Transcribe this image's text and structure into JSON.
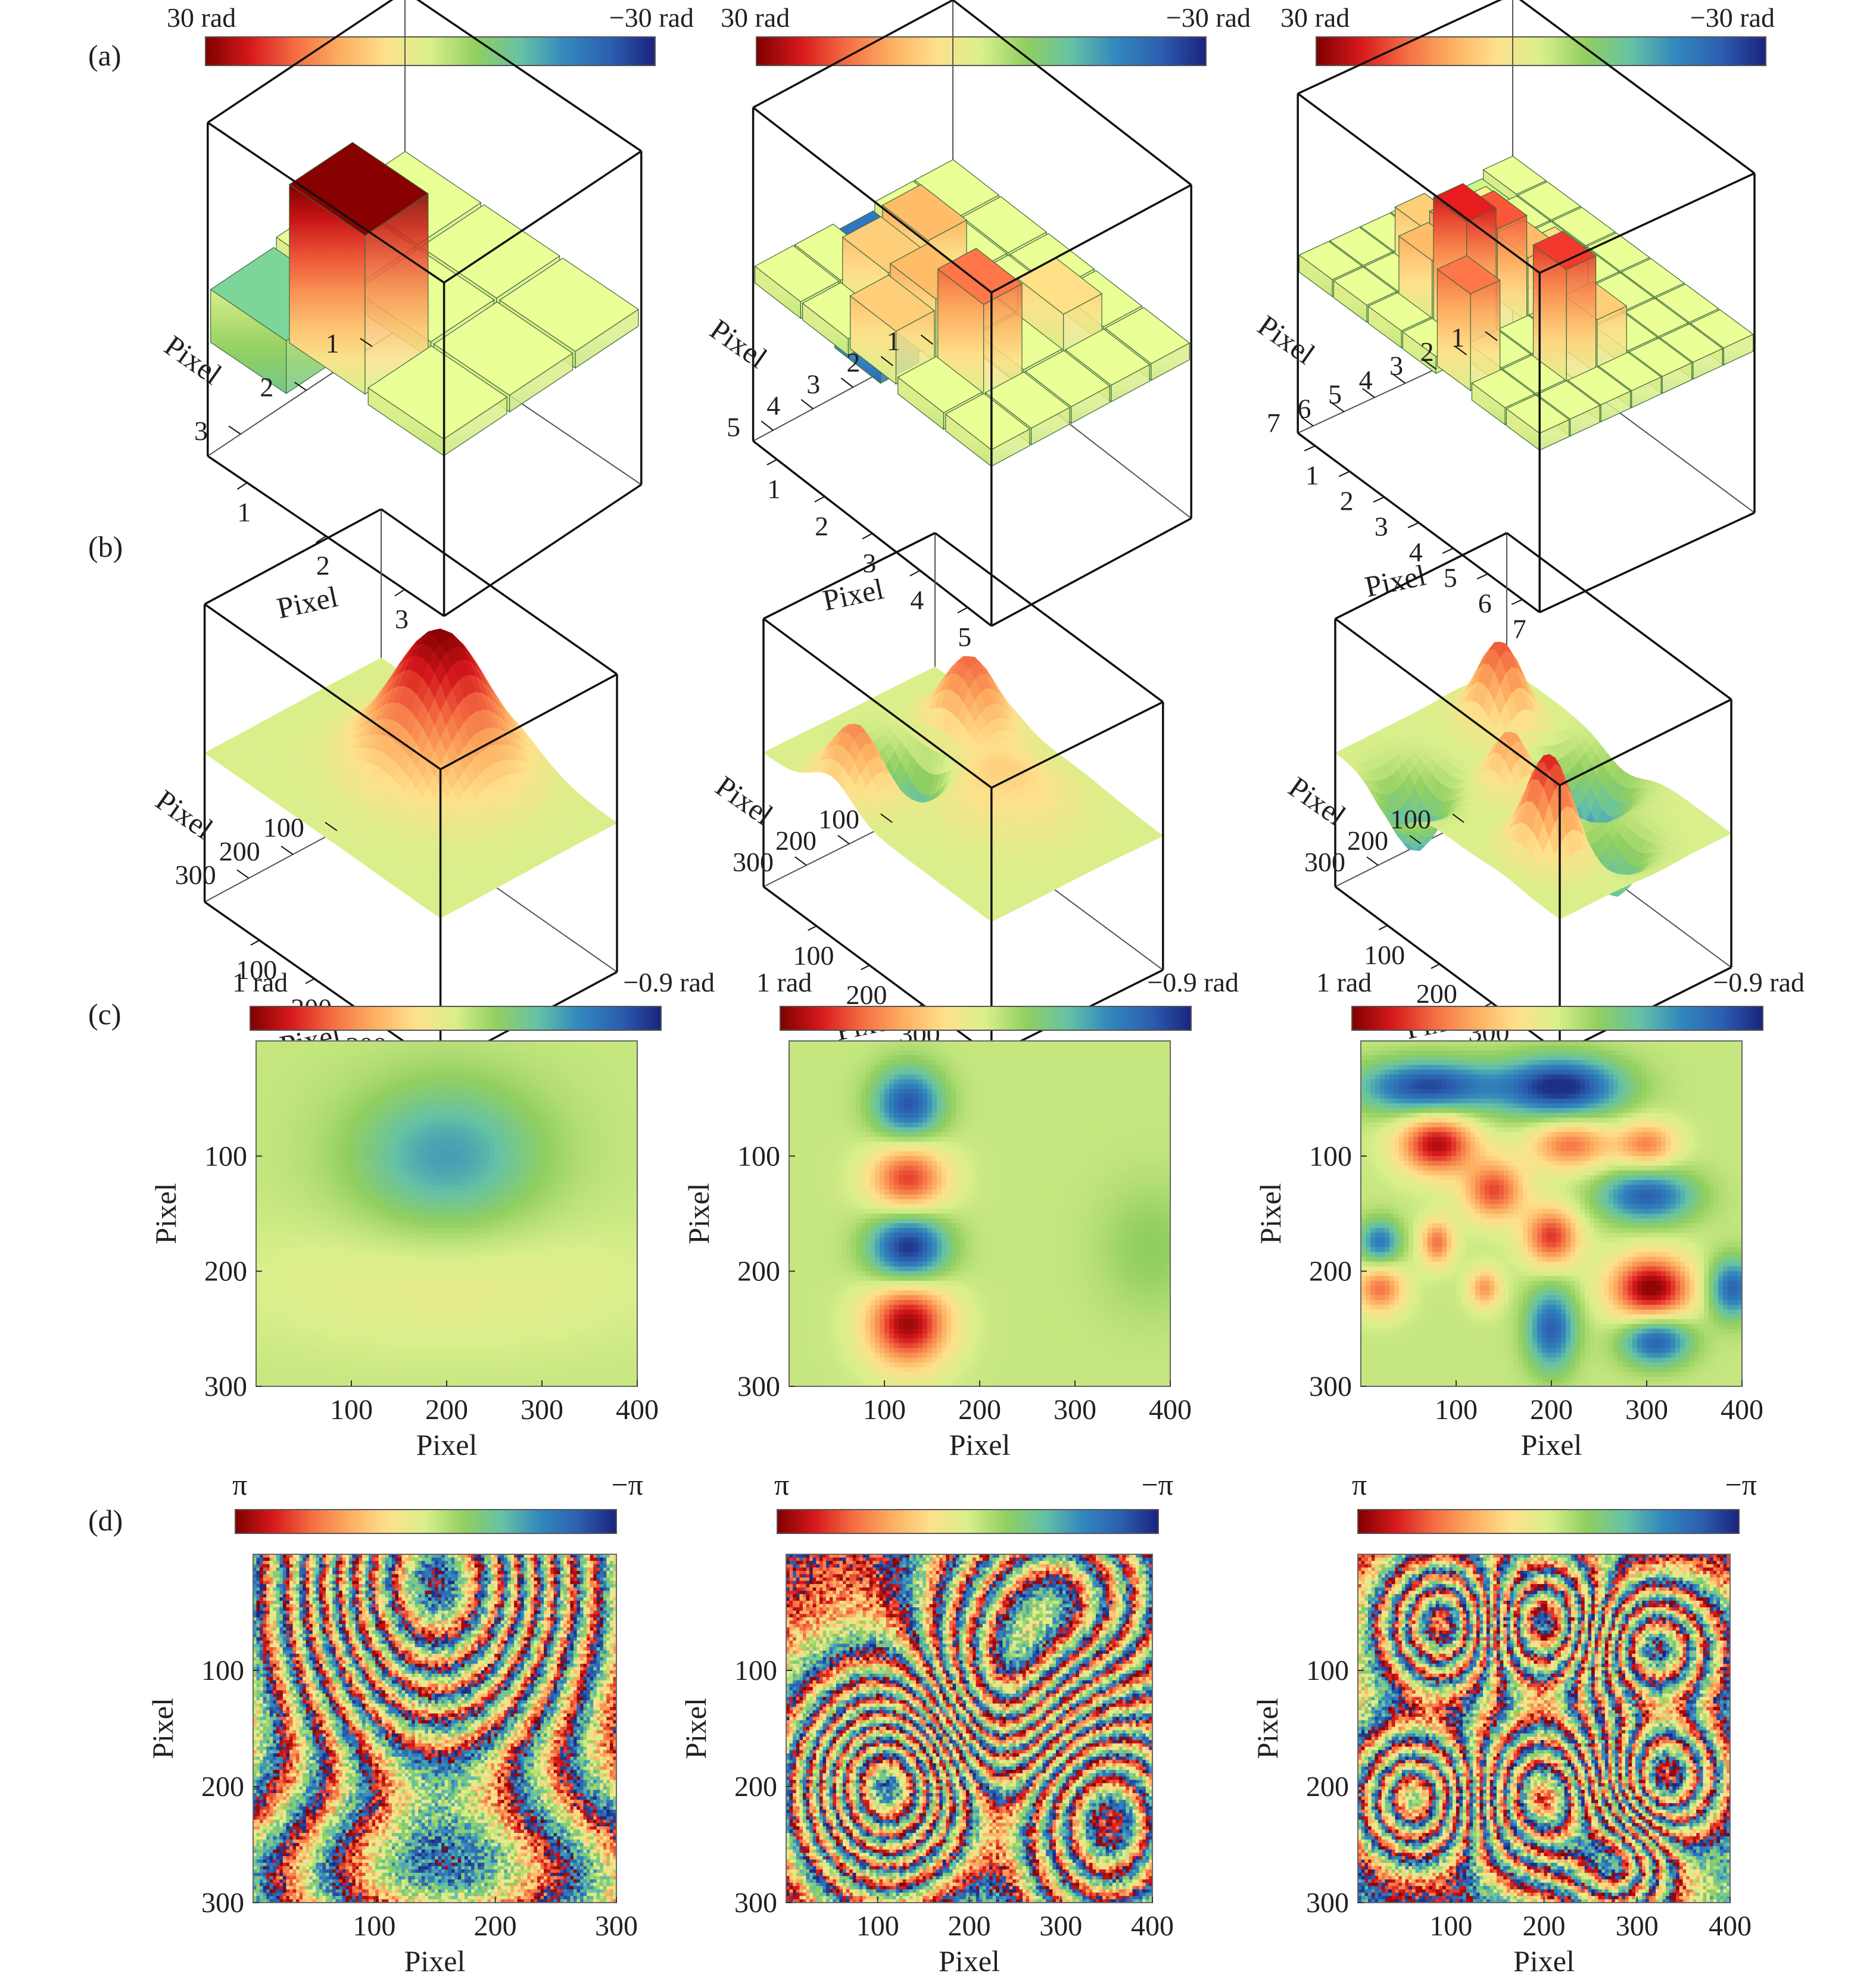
{
  "colormap": [
    "#7f0000",
    "#d7191c",
    "#f46d43",
    "#fdae61",
    "#fee08b",
    "#d9ef8b",
    "#91cf60",
    "#66c2a5",
    "#3288bd",
    "#2c5fb0",
    "#1a237e"
  ],
  "row_labels": [
    "(a)",
    "(b)",
    "(c)",
    "(d)"
  ],
  "row_a_colorbar": {
    "left": "30 rad",
    "right": "−30 rad"
  },
  "row_c_colorbar": {
    "left": "1 rad",
    "right": "−0.9 rad"
  },
  "row_d_colorbar": {
    "left": "π",
    "right": "−π"
  },
  "axis_label": "Pixel",
  "chart_data": [
    {
      "row": "a",
      "panel": 1,
      "type": "bar3d",
      "grid": [
        3,
        3
      ],
      "zlim": [
        -30,
        30
      ],
      "x_ticks": [
        "1",
        "2",
        "3"
      ],
      "y_ticks": [
        "1",
        "2",
        "3"
      ],
      "xlabel": "Pixel",
      "ylabel": "Pixel",
      "values": [
        [
          0,
          0,
          0
        ],
        [
          0,
          0,
          0
        ],
        [
          -10,
          30,
          0
        ]
      ]
    },
    {
      "row": "a",
      "panel": 2,
      "type": "bar3d",
      "grid": [
        5,
        5
      ],
      "zlim": [
        -30,
        30
      ],
      "x_ticks": [
        "1",
        "2",
        "3",
        "4",
        "5"
      ],
      "y_ticks": [
        "1",
        "2",
        "3",
        "4",
        "5"
      ],
      "xlabel": "Pixel",
      "ylabel": "Pixel",
      "values": [
        [
          0,
          0,
          0,
          0,
          0
        ],
        [
          0,
          0,
          0,
          8,
          0
        ],
        [
          -22,
          12,
          0,
          0,
          0
        ],
        [
          0,
          10,
          12,
          18,
          0
        ],
        [
          0,
          0,
          10,
          0,
          0
        ]
      ]
    },
    {
      "row": "a",
      "panel": 3,
      "type": "bar3d",
      "grid": [
        7,
        7
      ],
      "zlim": [
        -30,
        30
      ],
      "x_ticks": [
        "1",
        "2",
        "3",
        "4",
        "5",
        "6",
        "7"
      ],
      "y_ticks": [
        "1",
        "2",
        "3",
        "4",
        "5",
        "6",
        "7"
      ],
      "xlabel": "Pixel",
      "ylabel": "Pixel",
      "values": [
        [
          0,
          0,
          0,
          0,
          0,
          0,
          0
        ],
        [
          -2,
          0,
          0,
          0,
          0,
          0,
          0
        ],
        [
          -22,
          6,
          0,
          8,
          0,
          0,
          0
        ],
        [
          0,
          8,
          0,
          12,
          0,
          10,
          0
        ],
        [
          0,
          10,
          14,
          20,
          0,
          22,
          0
        ],
        [
          0,
          0,
          12,
          24,
          0,
          0,
          0
        ],
        [
          0,
          0,
          0,
          0,
          18,
          0,
          0
        ]
      ]
    },
    {
      "row": "b",
      "panel": 1,
      "type": "surface3d",
      "x_ticks": [
        "100",
        "200",
        "300",
        "400"
      ],
      "y_ticks": [
        "100",
        "200",
        "300"
      ],
      "xlabel": "Pixel",
      "ylabel": "Pixel",
      "peaks": [
        {
          "x": 200,
          "y": 100,
          "amp": 30,
          "sigma": 60
        }
      ]
    },
    {
      "row": "b",
      "panel": 2,
      "type": "surface3d",
      "x_ticks": [
        "100",
        "200",
        "300",
        "400"
      ],
      "y_ticks": [
        "100",
        "200",
        "300"
      ],
      "xlabel": "Pixel",
      "ylabel": "Pixel",
      "peaks": [
        {
          "x": 120,
          "y": 60,
          "amp": 18,
          "sigma": 35
        },
        {
          "x": 120,
          "y": 180,
          "amp": -22,
          "sigma": 35
        },
        {
          "x": 120,
          "y": 250,
          "amp": 18,
          "sigma": 35
        },
        {
          "x": 240,
          "y": 120,
          "amp": 8,
          "sigma": 60
        }
      ]
    },
    {
      "row": "b",
      "panel": 3,
      "type": "surface3d",
      "x_ticks": [
        "100",
        "200",
        "300",
        "400"
      ],
      "y_ticks": [
        "100",
        "200",
        "300"
      ],
      "xlabel": "Pixel",
      "ylabel": "Pixel",
      "peaks": [
        {
          "x": 80,
          "y": 90,
          "amp": 20,
          "sigma": 30
        },
        {
          "x": 210,
          "y": 60,
          "amp": -18,
          "sigma": 35
        },
        {
          "x": 300,
          "y": 220,
          "amp": 24,
          "sigma": 30
        },
        {
          "x": 180,
          "y": 170,
          "amp": 14,
          "sigma": 25
        },
        {
          "x": 100,
          "y": 260,
          "amp": -16,
          "sigma": 30
        },
        {
          "x": 320,
          "y": 130,
          "amp": -14,
          "sigma": 30
        }
      ]
    },
    {
      "row": "c",
      "panel": 1,
      "type": "heatmap",
      "xlim": [
        0,
        400
      ],
      "ylim": [
        0,
        300
      ],
      "x_ticks": [
        "100",
        "200",
        "300",
        "400"
      ],
      "y_ticks": [
        "100",
        "200",
        "300"
      ],
      "xlabel": "Pixel",
      "ylabel": "Pixel",
      "clim": [
        -0.9,
        1
      ],
      "peaks": [
        {
          "x": 200,
          "y": 100,
          "amp": -0.45,
          "sx": 70,
          "sy": 45
        },
        {
          "x": 200,
          "y": 210,
          "amp": 0.12,
          "sx": 150,
          "sy": 40
        }
      ]
    },
    {
      "row": "c",
      "panel": 2,
      "type": "heatmap",
      "xlim": [
        0,
        400
      ],
      "ylim": [
        0,
        300
      ],
      "x_ticks": [
        "100",
        "200",
        "300",
        "400"
      ],
      "y_ticks": [
        "100",
        "200",
        "300"
      ],
      "xlabel": "Pixel",
      "ylabel": "Pixel",
      "clim": [
        -0.9,
        1
      ],
      "peaks": [
        {
          "x": 125,
          "y": 55,
          "amp": -0.75,
          "sx": 25,
          "sy": 22
        },
        {
          "x": 125,
          "y": 120,
          "amp": 0.75,
          "sx": 28,
          "sy": 22
        },
        {
          "x": 125,
          "y": 180,
          "amp": -0.9,
          "sx": 28,
          "sy": 22
        },
        {
          "x": 125,
          "y": 245,
          "amp": 0.95,
          "sx": 30,
          "sy": 26
        },
        {
          "x": 380,
          "y": 180,
          "amp": -0.15,
          "sx": 40,
          "sy": 40
        }
      ]
    },
    {
      "row": "c",
      "panel": 3,
      "type": "heatmap",
      "xlim": [
        0,
        400
      ],
      "ylim": [
        0,
        300
      ],
      "x_ticks": [
        "100",
        "200",
        "300",
        "400"
      ],
      "y_ticks": [
        "100",
        "200",
        "300"
      ],
      "xlabel": "Pixel",
      "ylabel": "Pixel",
      "clim": [
        -0.9,
        1
      ],
      "peaks": [
        {
          "x": 70,
          "y": 40,
          "amp": -0.8,
          "sx": 50,
          "sy": 16
        },
        {
          "x": 210,
          "y": 40,
          "amp": -0.9,
          "sx": 45,
          "sy": 18
        },
        {
          "x": 80,
          "y": 90,
          "amp": 0.9,
          "sx": 28,
          "sy": 18
        },
        {
          "x": 220,
          "y": 90,
          "amp": 0.6,
          "sx": 30,
          "sy": 15
        },
        {
          "x": 300,
          "y": 90,
          "amp": 0.55,
          "sx": 22,
          "sy": 14
        },
        {
          "x": 140,
          "y": 130,
          "amp": 0.7,
          "sx": 22,
          "sy": 18
        },
        {
          "x": 300,
          "y": 135,
          "amp": -0.7,
          "sx": 35,
          "sy": 16
        },
        {
          "x": 200,
          "y": 170,
          "amp": 0.75,
          "sx": 20,
          "sy": 18
        },
        {
          "x": 80,
          "y": 175,
          "amp": 0.6,
          "sx": 12,
          "sy": 14
        },
        {
          "x": 20,
          "y": 175,
          "amp": -0.6,
          "sx": 15,
          "sy": 14
        },
        {
          "x": 305,
          "y": 215,
          "amp": 1.0,
          "sx": 30,
          "sy": 20
        },
        {
          "x": 130,
          "y": 215,
          "amp": 0.5,
          "sx": 12,
          "sy": 12
        },
        {
          "x": 20,
          "y": 215,
          "amp": 0.6,
          "sx": 18,
          "sy": 15
        },
        {
          "x": 390,
          "y": 215,
          "amp": -0.7,
          "sx": 18,
          "sy": 18
        },
        {
          "x": 200,
          "y": 250,
          "amp": -0.7,
          "sx": 18,
          "sy": 25
        },
        {
          "x": 310,
          "y": 260,
          "amp": -0.75,
          "sx": 25,
          "sy": 15
        }
      ]
    },
    {
      "row": "d",
      "panel": 1,
      "type": "wrapped_phase",
      "xlim": [
        0,
        300
      ],
      "ylim": [
        0,
        300
      ],
      "x_ticks": [
        "100",
        "200",
        "300"
      ],
      "y_ticks": [
        "100",
        "200",
        "300"
      ],
      "xlabel": "Pixel",
      "ylabel": "Pixel",
      "clim": [
        "-π",
        "π"
      ],
      "peaks": [
        {
          "x": 150,
          "y": 20,
          "amp": 60,
          "sx": 80,
          "sy": 110
        },
        {
          "x": 150,
          "y": 280,
          "amp": 20,
          "sx": 150,
          "sy": 60
        }
      ]
    },
    {
      "row": "d",
      "panel": 2,
      "type": "wrapped_phase",
      "xlim": [
        0,
        400
      ],
      "ylim": [
        0,
        300
      ],
      "x_ticks": [
        "100",
        "200",
        "300",
        "400"
      ],
      "y_ticks": [
        "100",
        "200",
        "300"
      ],
      "xlabel": "Pixel",
      "ylabel": "Pixel",
      "clim": [
        "-π",
        "π"
      ],
      "peaks": [
        {
          "x": 110,
          "y": 200,
          "amp": 45,
          "sx": 60,
          "sy": 55
        },
        {
          "x": 300,
          "y": 40,
          "amp": -30,
          "sx": 80,
          "sy": 60
        },
        {
          "x": 350,
          "y": 230,
          "amp": 30,
          "sx": 60,
          "sy": 60
        },
        {
          "x": 230,
          "y": 120,
          "amp": -20,
          "sx": 50,
          "sy": 50
        }
      ]
    },
    {
      "row": "d",
      "panel": 3,
      "type": "wrapped_phase",
      "xlim": [
        0,
        400
      ],
      "ylim": [
        0,
        300
      ],
      "x_ticks": [
        "100",
        "200",
        "300",
        "400"
      ],
      "y_ticks": [
        "100",
        "200",
        "300"
      ],
      "xlabel": "Pixel",
      "ylabel": "Pixel",
      "clim": [
        "-π",
        "π"
      ],
      "peaks": [
        {
          "x": 90,
          "y": 60,
          "amp": 25,
          "sx": 40,
          "sy": 35
        },
        {
          "x": 200,
          "y": 60,
          "amp": -25,
          "sx": 40,
          "sy": 35
        },
        {
          "x": 320,
          "y": 80,
          "amp": 25,
          "sx": 45,
          "sy": 35
        },
        {
          "x": 60,
          "y": 210,
          "amp": 25,
          "sx": 40,
          "sy": 35
        },
        {
          "x": 200,
          "y": 210,
          "amp": -30,
          "sx": 45,
          "sy": 45
        },
        {
          "x": 330,
          "y": 190,
          "amp": 25,
          "sx": 40,
          "sy": 35
        },
        {
          "x": 280,
          "y": 270,
          "amp": -20,
          "sx": 35,
          "sy": 30
        }
      ]
    }
  ]
}
